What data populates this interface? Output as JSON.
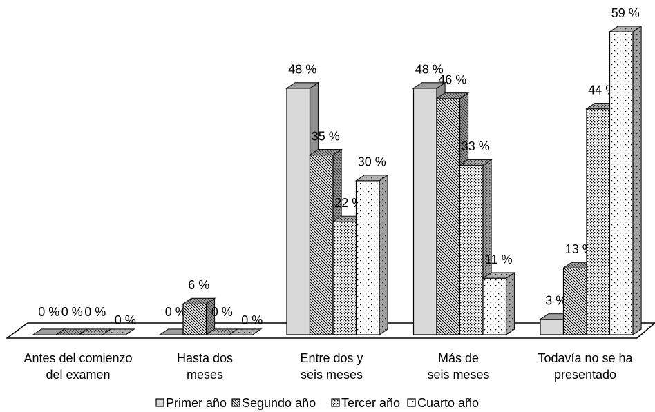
{
  "chart_data": {
    "type": "bar3d",
    "categories": [
      [
        "Antes del comienzo",
        "del examen"
      ],
      [
        "Hasta dos",
        "meses"
      ],
      [
        "Entre dos y",
        "seis meses"
      ],
      [
        "Más de",
        "seis meses"
      ],
      [
        "Todavía no se ha",
        "presentado"
      ]
    ],
    "series": [
      {
        "name": "Primer año",
        "color": "#d9d9d9",
        "values": [
          0,
          0,
          48,
          48,
          3
        ],
        "value_labels": [
          "0 %",
          "0 %",
          "48 %",
          "48 %",
          "3 %"
        ]
      },
      {
        "name": "Segundo año",
        "color": "#ffffff",
        "values": [
          0,
          6,
          35,
          46,
          13
        ],
        "value_labels": [
          "0 %",
          "6 %",
          "35 %",
          "46 %",
          "13 %"
        ]
      },
      {
        "name": "Tercer año",
        "color": "#ffffff",
        "values": [
          0,
          0,
          22,
          33,
          44
        ],
        "value_labels": [
          "0 %",
          "0 %",
          "22 %",
          "33 %",
          "44 %"
        ]
      },
      {
        "name": "Cuarto año",
        "color": "#ffffff",
        "values": [
          0,
          0,
          30,
          11,
          59
        ],
        "value_labels": [
          "0 %",
          "0 %",
          "30 %",
          "11 %",
          "59 %"
        ]
      }
    ]
  }
}
